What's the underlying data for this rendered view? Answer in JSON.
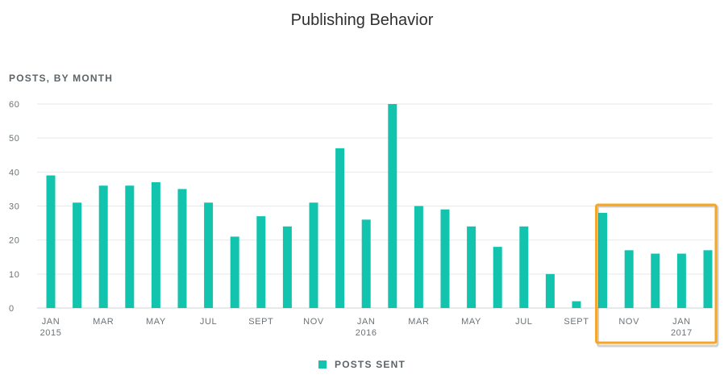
{
  "header": {
    "title": "Publishing Behavior",
    "subtitle": "POSTS, BY MONTH"
  },
  "legend": {
    "label": "POSTS SENT"
  },
  "colors": {
    "bar": "#12c4ae",
    "grid": "#e6e9ea",
    "axis": "#cfd4d6",
    "highlight": "#f5a623"
  },
  "chart_data": {
    "type": "bar",
    "title": "Publishing Behavior",
    "ylabel": "POSTS, BY MONTH",
    "ylim": [
      0,
      60
    ],
    "yticks": [
      0,
      10,
      20,
      30,
      40,
      50,
      60
    ],
    "grid": true,
    "legend_position": "bottom-center",
    "categories": [
      "2015-01",
      "2015-02",
      "2015-03",
      "2015-04",
      "2015-05",
      "2015-06",
      "2015-07",
      "2015-08",
      "2015-09",
      "2015-10",
      "2015-11",
      "2015-12",
      "2016-01",
      "2016-02",
      "2016-03",
      "2016-04",
      "2016-05",
      "2016-06",
      "2016-07",
      "2016-08",
      "2016-09",
      "2016-10",
      "2016-11",
      "2016-12",
      "2017-01",
      "2017-02"
    ],
    "x_tick_labels": [
      {
        "index": 0,
        "line1": "JAN",
        "line2": "2015"
      },
      {
        "index": 2,
        "line1": "MAR",
        "line2": ""
      },
      {
        "index": 4,
        "line1": "MAY",
        "line2": ""
      },
      {
        "index": 6,
        "line1": "JUL",
        "line2": ""
      },
      {
        "index": 8,
        "line1": "SEPT",
        "line2": ""
      },
      {
        "index": 10,
        "line1": "NOV",
        "line2": ""
      },
      {
        "index": 12,
        "line1": "JAN",
        "line2": "2016"
      },
      {
        "index": 14,
        "line1": "MAR",
        "line2": ""
      },
      {
        "index": 16,
        "line1": "MAY",
        "line2": ""
      },
      {
        "index": 18,
        "line1": "JUL",
        "line2": ""
      },
      {
        "index": 20,
        "line1": "SEPT",
        "line2": ""
      },
      {
        "index": 22,
        "line1": "NOV",
        "line2": ""
      },
      {
        "index": 24,
        "line1": "JAN",
        "line2": "2017"
      }
    ],
    "series": [
      {
        "name": "POSTS SENT",
        "values": [
          39,
          31,
          36,
          36,
          37,
          35,
          31,
          21,
          27,
          24,
          31,
          47,
          26,
          60,
          30,
          29,
          24,
          18,
          24,
          10,
          2,
          28,
          17,
          16,
          16,
          17
        ]
      }
    ],
    "highlight": {
      "from_index": 21,
      "to_index": 25
    }
  }
}
